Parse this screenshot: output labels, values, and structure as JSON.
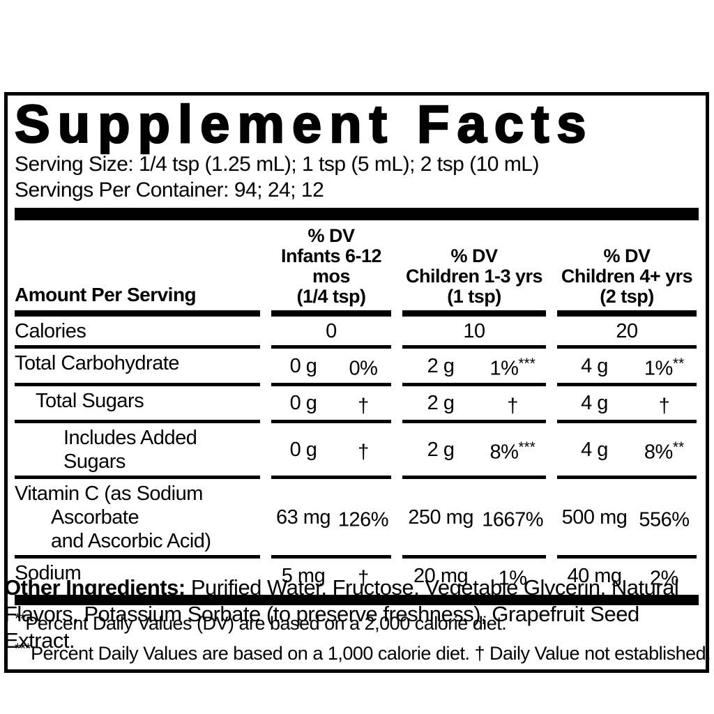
{
  "title": "Supplement Facts",
  "serving": {
    "size_line": "Serving Size: 1/4 tsp (1.25 mL); 1 tsp (5 mL); 2 tsp (10 mL)",
    "servings_line": "Servings Per Container: 94; 24; 12"
  },
  "table": {
    "amount_header": "Amount Per Serving",
    "columns": [
      {
        "dv": "% DV",
        "group": "Infants 6-12 mos",
        "tsp": "(1/4  tsp)"
      },
      {
        "dv": "%  DV",
        "group": "Children 1-3 yrs",
        "tsp": "(1  tsp)"
      },
      {
        "dv": "%  DV",
        "group": "Children 4+ yrs",
        "tsp": "(2  tsp)"
      }
    ],
    "rows": [
      {
        "label": "Calories",
        "values": [
          "0",
          "10",
          "20"
        ]
      },
      {
        "label": "Total Carbohydrate",
        "cells": [
          {
            "amount": "0 g",
            "pct": "0%",
            "sup": ""
          },
          {
            "amount": "2 g",
            "pct": "1%",
            "sup": "***"
          },
          {
            "amount": "4 g",
            "pct": "1%",
            "sup": "**"
          }
        ]
      },
      {
        "label": "Total Sugars",
        "cells": [
          {
            "amount": "0 g",
            "pct": "†",
            "sup": ""
          },
          {
            "amount": "2 g",
            "pct": "†",
            "sup": ""
          },
          {
            "amount": "4 g",
            "pct": "†",
            "sup": ""
          }
        ]
      },
      {
        "label": "Includes Added Sugars",
        "cells": [
          {
            "amount": "0 g",
            "pct": "†",
            "sup": ""
          },
          {
            "amount": "2 g",
            "pct": "8%",
            "sup": "***"
          },
          {
            "amount": "4 g",
            "pct": "8%",
            "sup": "**"
          }
        ]
      },
      {
        "label": "Vitamin C (as Sodium Ascorbate\nand Ascorbic Acid)",
        "cells": [
          {
            "amount": "63 mg",
            "pct": "126%",
            "sup": ""
          },
          {
            "amount": "250 mg",
            "pct": "1667%",
            "sup": ""
          },
          {
            "amount": "500 mg",
            "pct": "556%",
            "sup": ""
          }
        ]
      },
      {
        "label": "Sodium",
        "cells": [
          {
            "amount": "5 mg",
            "pct": "†",
            "sup": ""
          },
          {
            "amount": "20 mg",
            "pct": "1%",
            "sup": ""
          },
          {
            "amount": "40 mg",
            "pct": "2%",
            "sup": ""
          }
        ]
      }
    ]
  },
  "footnotes": [
    {
      "marker": "**",
      "text": "Percent Daily Values (DV) are based on a 2,000 calorie diet."
    },
    {
      "marker": "***",
      "text": "Percent Daily Values are based on a 1,000 calorie diet. † Daily Value not established."
    }
  ],
  "other_ingredients": {
    "label": "Other Ingredients:",
    "text": " Purified Water, Fructose, Vegetable Glycerin, Natural Flavors, Potassium Sorbate (to preserve freshness), Grapefruit Seed Extract."
  }
}
